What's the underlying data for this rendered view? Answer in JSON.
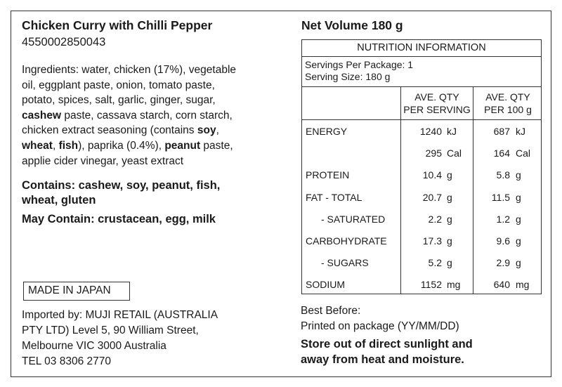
{
  "product": {
    "title": "Chicken Curry with Chilli Pepper",
    "barcode_number": "4550002850043",
    "ingredients_lines": [
      [
        {
          "t": "Ingredients: water, chicken (17%), vegetable"
        }
      ],
      [
        {
          "t": "oil, eggplant paste, onion, tomato paste,"
        }
      ],
      [
        {
          "t": "potato, spices, salt, garlic, ginger, sugar,"
        }
      ],
      [
        {
          "t": "cashew",
          "b": true
        },
        {
          "t": " paste, cassava starch, corn starch,"
        }
      ],
      [
        {
          "t": "chicken extract seasoning (contains "
        },
        {
          "t": "soy",
          "b": true
        },
        {
          "t": ","
        }
      ],
      [
        {
          "t": "wheat",
          "b": true
        },
        {
          "t": ", "
        },
        {
          "t": "fish",
          "b": true
        },
        {
          "t": "), paprika (0.4%), "
        },
        {
          "t": "peanut",
          "b": true
        },
        {
          "t": " paste,"
        }
      ],
      [
        {
          "t": "applie cider vinegar, yeast extract"
        }
      ]
    ],
    "contains_lines": [
      "Contains: cashew, soy, peanut, fish,",
      "wheat, gluten"
    ],
    "may_contain": "May Contain: crustacean, egg, milk",
    "origin": "MADE IN JAPAN",
    "importer_lines": [
      "Imported by: MUJI RETAIL (AUSTRALIA",
      "PTY LTD) Level 5, 90 William Street,",
      "Melbourne VIC 3000 Australia",
      "TEL 03 8306 2770"
    ]
  },
  "net_volume": "Net Volume 180 g",
  "nutrition": {
    "heading": "NUTRITION INFORMATION",
    "servings_per_package": "Servings Per Package: 1",
    "serving_size": "Serving Size: 180 g",
    "col_per_serving": [
      "AVE. QTY",
      "PER SERVING"
    ],
    "col_per_100g": [
      "AVE. QTY",
      "PER 100 g"
    ],
    "rows": [
      {
        "label": "ENERGY",
        "serving": "1240",
        "serving_unit": "kJ",
        "per100": "687",
        "per100_unit": "kJ"
      },
      {
        "label": "",
        "serving": "295",
        "serving_unit": "Cal",
        "per100": "164",
        "per100_unit": "Cal"
      },
      {
        "label": "PROTEIN",
        "serving": "10.4",
        "serving_unit": "g",
        "per100": "5.8",
        "per100_unit": "g"
      },
      {
        "label": "FAT - TOTAL",
        "serving": "20.7",
        "serving_unit": "g",
        "per100": "11.5",
        "per100_unit": "g"
      },
      {
        "label": "- SATURATED",
        "indent": true,
        "serving": "2.2",
        "serving_unit": "g",
        "per100": "1.2",
        "per100_unit": "g"
      },
      {
        "label": "CARBOHYDRATE",
        "serving": "17.3",
        "serving_unit": "g",
        "per100": "9.6",
        "per100_unit": "g"
      },
      {
        "label": "- SUGARS",
        "indent": true,
        "serving": "5.2",
        "serving_unit": "g",
        "per100": "2.9",
        "per100_unit": "g"
      },
      {
        "label": "SODIUM",
        "serving": "1152",
        "serving_unit": "mg",
        "per100": "640",
        "per100_unit": "mg"
      }
    ]
  },
  "best_before": [
    "Best Before:",
    "Printed on package (YY/MM/DD)"
  ],
  "storage_lines": [
    "Store out of direct sunlight and",
    "away from heat and moisture."
  ]
}
